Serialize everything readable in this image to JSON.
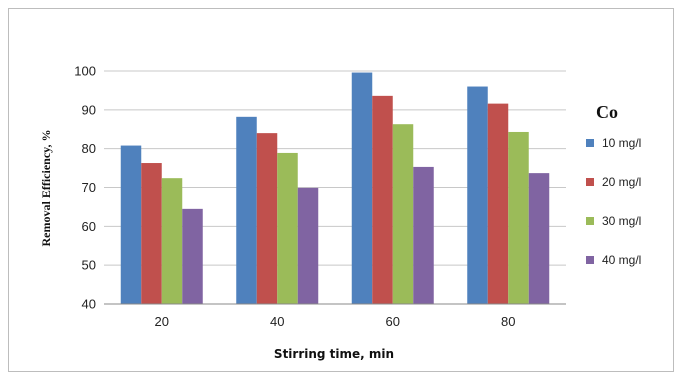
{
  "chart_data": {
    "type": "bar",
    "title": "",
    "xlabel": "Stirring time, min",
    "ylabel": "Removal Efficiency, %",
    "categories": [
      "20",
      "40",
      "60",
      "80"
    ],
    "ylim": [
      40,
      100
    ],
    "yticks": [
      "40",
      "50",
      "60",
      "70",
      "80",
      "90",
      "100"
    ],
    "grid": true,
    "legend_title": "Co",
    "legend_position": "right",
    "series": [
      {
        "name": "10 mg/l",
        "color": "#4F81BD",
        "values": [
          80.8,
          88.2,
          99.6,
          96.0
        ]
      },
      {
        "name": "20 mg/l",
        "color": "#C0504D",
        "values": [
          76.3,
          84.0,
          93.6,
          91.6
        ]
      },
      {
        "name": "30 mg/l",
        "color": "#9BBB59",
        "values": [
          72.4,
          78.9,
          86.3,
          84.3
        ]
      },
      {
        "name": "40 mg/l",
        "color": "#8064A2",
        "values": [
          64.5,
          69.9,
          75.3,
          73.7
        ]
      }
    ]
  }
}
